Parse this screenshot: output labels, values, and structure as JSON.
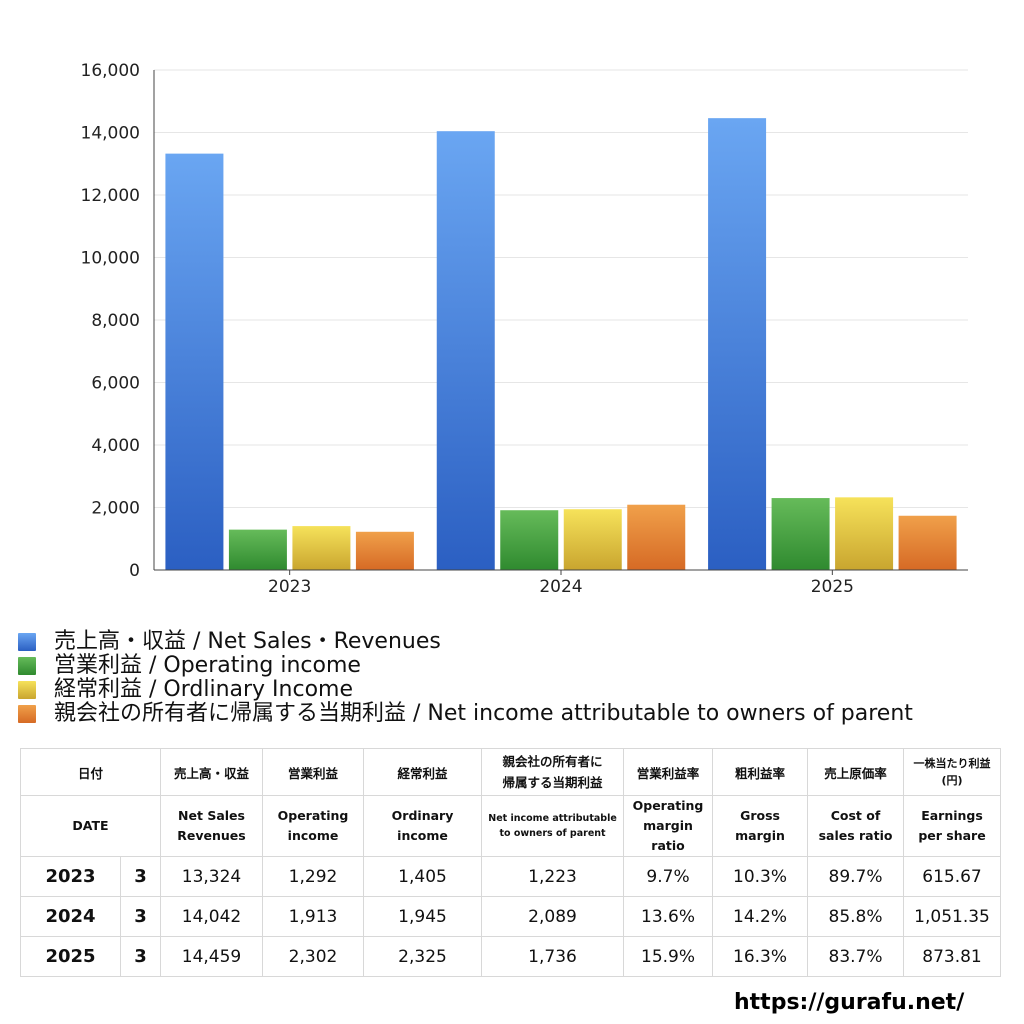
{
  "chart_data": {
    "type": "bar",
    "title": "",
    "xlabel": "",
    "ylabel": "",
    "categories": [
      "2023",
      "2024",
      "2025"
    ],
    "ylim": [
      0,
      16000
    ],
    "yticks": [
      0,
      2000,
      4000,
      6000,
      8000,
      10000,
      12000,
      14000,
      16000
    ],
    "ytick_labels": [
      "0",
      "2,000",
      "4,000",
      "6,000",
      "8,000",
      "10,000",
      "12,000",
      "14,000",
      "16,000"
    ],
    "grid": true,
    "legend_position": "bottom-left",
    "series": [
      {
        "name": "売上高・収益 / Net Sales・Revenues",
        "color": "#3a78d8",
        "values": [
          13324,
          14042,
          14459
        ]
      },
      {
        "name": "営業利益 / Operating income",
        "color": "#3f9a3c",
        "values": [
          1292,
          1913,
          2302
        ]
      },
      {
        "name": "経常利益 / Ordlinary Income",
        "color": "#e3c53b",
        "values": [
          1405,
          1945,
          2325
        ]
      },
      {
        "name": "親会社の所有者に帰属する当期利益 / Net income attributable to owners of parent",
        "color": "#e07a2e",
        "values": [
          1223,
          2089,
          1736
        ]
      }
    ]
  },
  "table": {
    "header_jp": {
      "date": "日付",
      "sales": "売上高・収益",
      "op_income": "営業利益",
      "ord_income": "経常利益",
      "net_income_line1": "親会社の所有者に",
      "net_income_line2": "帰属する当期利益",
      "op_margin": "営業利益率",
      "gross_margin": "粗利益率",
      "cost_ratio": "売上原価率",
      "eps_line1": "一株当たり利益",
      "eps_line2": "(円)"
    },
    "header_en": {
      "date": "DATE",
      "sales_line1": "Net Sales",
      "sales_line2": "Revenues",
      "op_income_line1": "Operating",
      "op_income_line2": "income",
      "ord_income_line1": "Ordinary",
      "ord_income_line2": "income",
      "net_income_line1": "Net income attributable",
      "net_income_line2": "to owners of parent",
      "op_margin_line1": "Operating",
      "op_margin_line2": "margin",
      "op_margin_line3": "ratio",
      "gross_margin_line1": "Gross",
      "gross_margin_line2": "margin",
      "cost_ratio_line1": "Cost of",
      "cost_ratio_line2": "sales ratio",
      "eps_line1": "Earnings",
      "eps_line2": "per share"
    },
    "rows": [
      {
        "year": "2023",
        "month": "3",
        "sales": "13,324",
        "op_income": "1,292",
        "ord_income": "1,405",
        "net_income": "1,223",
        "op_margin": "9.7%",
        "gross_margin": "10.3%",
        "cost_ratio": "89.7%",
        "eps": "615.67"
      },
      {
        "year": "2024",
        "month": "3",
        "sales": "14,042",
        "op_income": "1,913",
        "ord_income": "1,945",
        "net_income": "2,089",
        "op_margin": "13.6%",
        "gross_margin": "14.2%",
        "cost_ratio": "85.8%",
        "eps": "1,051.35"
      },
      {
        "year": "2025",
        "month": "3",
        "sales": "14,459",
        "op_income": "2,302",
        "ord_income": "2,325",
        "net_income": "1,736",
        "op_margin": "15.9%",
        "gross_margin": "16.3%",
        "cost_ratio": "83.7%",
        "eps": "873.81"
      }
    ]
  },
  "watermark": "https://gurafu.net/"
}
